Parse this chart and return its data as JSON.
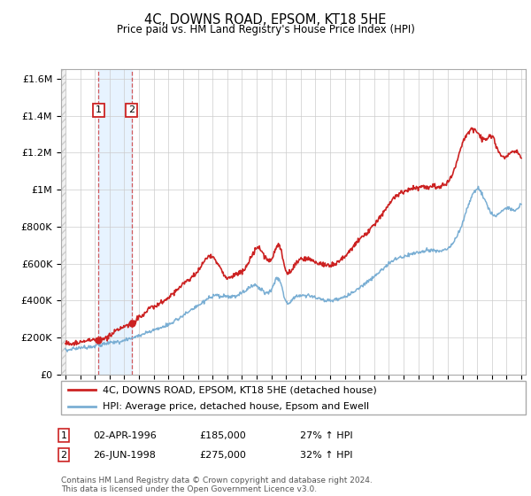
{
  "title": "4C, DOWNS ROAD, EPSOM, KT18 5HE",
  "subtitle": "Price paid vs. HM Land Registry's House Price Index (HPI)",
  "legend_line1": "4C, DOWNS ROAD, EPSOM, KT18 5HE (detached house)",
  "legend_line2": "HPI: Average price, detached house, Epsom and Ewell",
  "footer": "Contains HM Land Registry data © Crown copyright and database right 2024.\nThis data is licensed under the Open Government Licence v3.0.",
  "sale1_date": "02-APR-1996",
  "sale1_price": 185000,
  "sale1_hpi": "27% ↑ HPI",
  "sale2_date": "26-JUN-1998",
  "sale2_price": 275000,
  "sale2_hpi": "32% ↑ HPI",
  "sale1_x": 1996.25,
  "sale2_x": 1998.5,
  "hpi_color": "#7bafd4",
  "price_color": "#cc2222",
  "ylim": [
    0,
    1650000
  ],
  "xlim_start": 1993.7,
  "xlim_end": 2025.3,
  "hpi_pts_x": [
    1994,
    1995,
    1996,
    1997,
    1998,
    1999,
    2000,
    2001,
    2002,
    2003,
    2004,
    2005,
    2006,
    2007,
    2008,
    2008.5,
    2009,
    2009.5,
    2010,
    2011,
    2012,
    2013,
    2014,
    2015,
    2016,
    2017,
    2018,
    2019,
    2020,
    2020.5,
    2021,
    2022,
    2022.5,
    2023,
    2023.5,
    2024,
    2024.5,
    2025
  ],
  "hpi_pts_y": [
    130000,
    145000,
    155000,
    170000,
    185000,
    210000,
    240000,
    270000,
    320000,
    370000,
    420000,
    420000,
    440000,
    480000,
    460000,
    520000,
    395000,
    410000,
    430000,
    415000,
    400000,
    420000,
    470000,
    530000,
    600000,
    640000,
    660000,
    670000,
    680000,
    730000,
    820000,
    1000000,
    950000,
    870000,
    870000,
    900000,
    890000,
    930000
  ],
  "price_pts_x": [
    1994,
    1995,
    1996,
    1996.25,
    1997,
    1998,
    1998.5,
    1999,
    2000,
    2001,
    2002,
    2003,
    2004,
    2005,
    2005.5,
    2006,
    2006.5,
    2007,
    2007.5,
    2008,
    2008.5,
    2009,
    2009.5,
    2010,
    2011,
    2012,
    2013,
    2014,
    2015,
    2016,
    2017,
    2018,
    2019,
    2020,
    2020.5,
    2021,
    2022,
    2022.5,
    2023,
    2023.5,
    2024,
    2025
  ],
  "price_pts_y": [
    165000,
    175000,
    185000,
    185000,
    210000,
    260000,
    275000,
    310000,
    365000,
    415000,
    490000,
    560000,
    640000,
    520000,
    540000,
    560000,
    610000,
    680000,
    650000,
    620000,
    700000,
    560000,
    580000,
    620000,
    610000,
    590000,
    640000,
    730000,
    810000,
    920000,
    990000,
    1010000,
    1020000,
    1040000,
    1120000,
    1250000,
    1310000,
    1270000,
    1290000,
    1200000,
    1180000,
    1170000
  ]
}
